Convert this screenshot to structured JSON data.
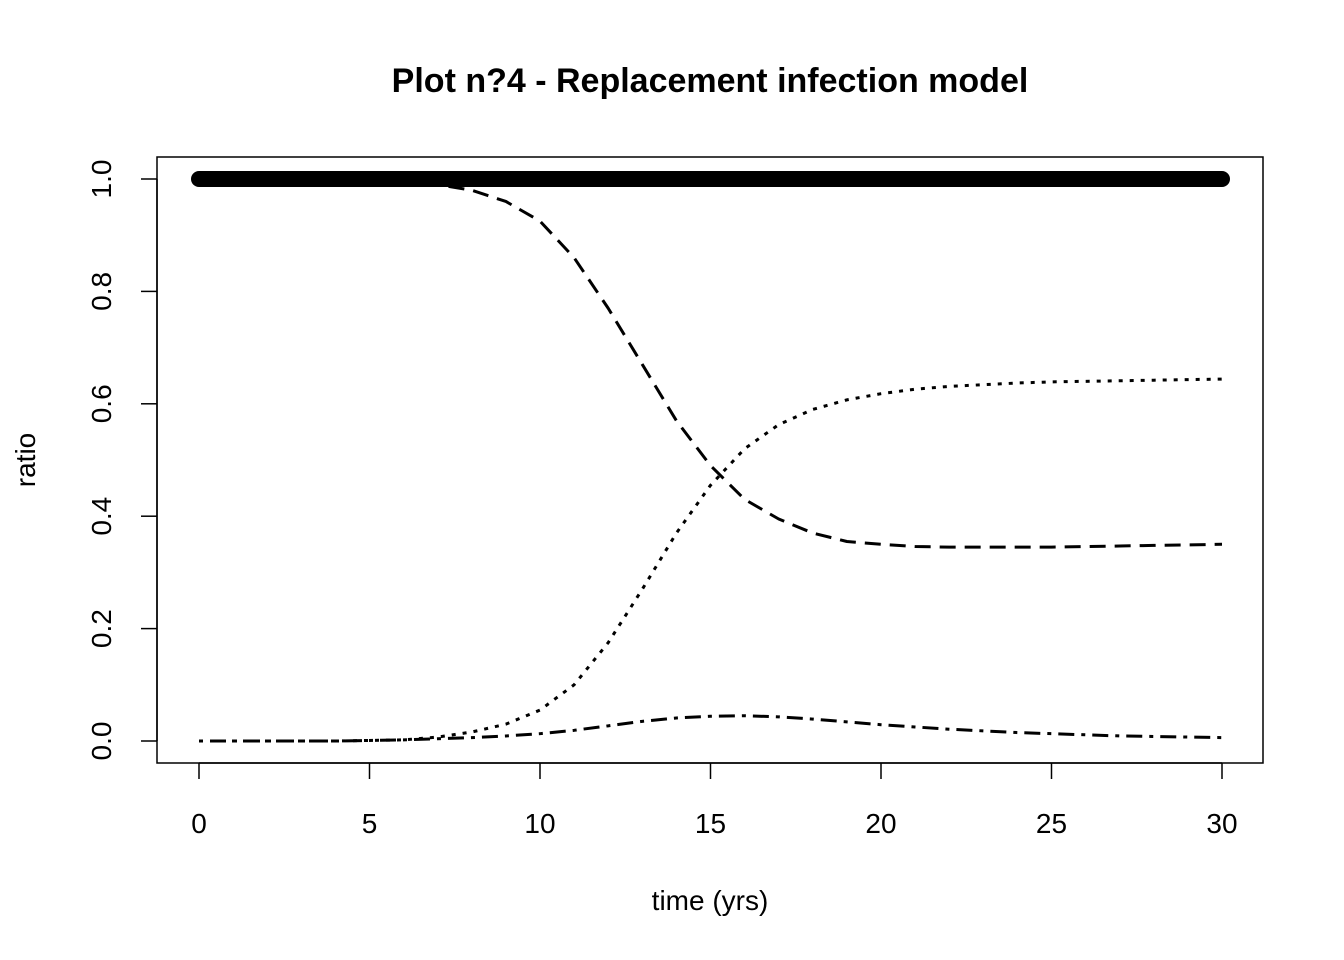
{
  "chart_data": {
    "type": "line",
    "title": "Plot n?4 - Replacement infection model",
    "xlabel": "time (yrs)",
    "ylabel": "ratio",
    "xlim": [
      0,
      30
    ],
    "ylim": [
      0,
      1
    ],
    "x_ticks": [
      0,
      5,
      10,
      15,
      20,
      25,
      30
    ],
    "y_ticks": [
      0.0,
      0.2,
      0.4,
      0.6,
      0.8,
      1.0
    ],
    "x_tick_labels": [
      "0",
      "5",
      "10",
      "15",
      "20",
      "25",
      "30"
    ],
    "y_tick_labels": [
      "0.0",
      "0.2",
      "0.4",
      "0.6",
      "0.8",
      "1.0"
    ],
    "grid": false,
    "legend": "none",
    "series": [
      {
        "style": "thick-solid",
        "x": [
          0,
          5,
          10,
          15,
          20,
          25,
          30
        ],
        "y": [
          1.0,
          1.0,
          1.0,
          1.0,
          1.0,
          1.0,
          1.0
        ]
      },
      {
        "style": "dashed",
        "x": [
          0,
          2,
          4,
          6,
          7,
          8,
          9,
          10,
          11,
          12,
          13,
          14,
          15,
          16,
          17,
          18,
          19,
          20,
          21,
          22,
          23,
          24,
          25,
          26,
          27,
          28,
          29,
          30
        ],
        "y": [
          1.0,
          1.0,
          1.0,
          0.998,
          0.99,
          0.98,
          0.96,
          0.925,
          0.86,
          0.77,
          0.67,
          0.57,
          0.49,
          0.43,
          0.395,
          0.37,
          0.355,
          0.35,
          0.346,
          0.345,
          0.345,
          0.345,
          0.345,
          0.346,
          0.347,
          0.348,
          0.349,
          0.35
        ]
      },
      {
        "style": "dotted",
        "x": [
          0,
          2,
          4,
          6,
          7,
          8,
          9,
          10,
          11,
          12,
          13,
          14,
          15,
          16,
          17,
          18,
          19,
          20,
          21,
          22,
          23,
          24,
          25,
          26,
          27,
          28,
          29,
          30
        ],
        "y": [
          0.0,
          0.0,
          0.0,
          0.002,
          0.007,
          0.016,
          0.03,
          0.055,
          0.1,
          0.175,
          0.27,
          0.37,
          0.455,
          0.52,
          0.563,
          0.59,
          0.607,
          0.618,
          0.626,
          0.631,
          0.634,
          0.637,
          0.639,
          0.64,
          0.641,
          0.642,
          0.643,
          0.644
        ]
      },
      {
        "style": "dash-dot",
        "x": [
          0,
          2,
          4,
          6,
          7,
          8,
          9,
          10,
          11,
          12,
          13,
          14,
          15,
          16,
          17,
          18,
          19,
          20,
          21,
          22,
          23,
          24,
          25,
          26,
          27,
          28,
          29,
          30
        ],
        "y": [
          0.0,
          0.0,
          0.0,
          0.002,
          0.004,
          0.006,
          0.009,
          0.013,
          0.019,
          0.027,
          0.035,
          0.041,
          0.044,
          0.045,
          0.043,
          0.039,
          0.034,
          0.029,
          0.025,
          0.021,
          0.018,
          0.015,
          0.013,
          0.011,
          0.009,
          0.008,
          0.007,
          0.006
        ]
      }
    ]
  }
}
